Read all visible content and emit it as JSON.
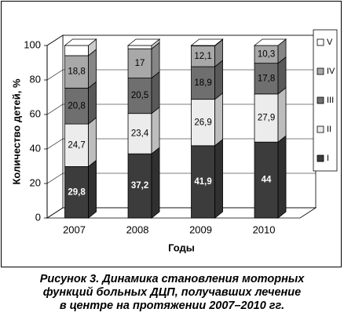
{
  "chart_data": {
    "type": "bar",
    "stacked": true,
    "three_d": true,
    "categories": [
      "2007",
      "2008",
      "2009",
      "2010"
    ],
    "series": [
      {
        "name": "I",
        "values": [
          29.8,
          37.2,
          41.9,
          44
        ],
        "color": "#3c3c3c",
        "label_color": "#ffffff",
        "labels": [
          "29,8",
          "37,2",
          "41,9",
          "44"
        ]
      },
      {
        "name": "II",
        "values": [
          24.7,
          23.4,
          26.9,
          27.9
        ],
        "color": "#ececec",
        "label_color": "#000000",
        "labels": [
          "24,7",
          "23,4",
          "26,9",
          "27,9"
        ]
      },
      {
        "name": "III",
        "values": [
          20.8,
          20.5,
          18.9,
          17.8
        ],
        "color": "#6f6f6f",
        "label_color": "#000000",
        "labels": [
          "20,8",
          "20,5",
          "18,9",
          "17,8"
        ]
      },
      {
        "name": "IV",
        "values": [
          18.8,
          17,
          12.1,
          10.3
        ],
        "color": "#a8a8a8",
        "label_color": "#000000",
        "labels": [
          "18,8",
          "17",
          "12,1",
          "10,3"
        ]
      },
      {
        "name": "V",
        "values": [
          5.9,
          1.9,
          0.2,
          0
        ],
        "color": "#ffffff",
        "label_color": "#000000",
        "labels": [
          "",
          "",
          "",
          ""
        ]
      }
    ],
    "ylabel": "Количество детей, %",
    "xlabel": "Годы",
    "ylim": [
      0,
      100
    ],
    "yticks": [
      0,
      20,
      40,
      60,
      80,
      100
    ],
    "legend_position": "right"
  },
  "caption": {
    "line1": "Рисунок 3. Динамика становления моторных",
    "line2": "функций больных ДЦП, получавших лечение",
    "line3": "в центре на протяжении 2007–2010 гг."
  }
}
